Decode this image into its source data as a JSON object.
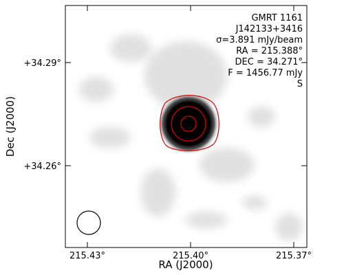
{
  "chart_data": {
    "type": "image",
    "annotations": [
      "GMRT 1161",
      "J142133+3416",
      "σ=3.891 mJy/beam",
      "RA = 215.388°",
      "DEC = 34.271°",
      "F = 1456.77 mJy",
      "S"
    ],
    "xlabel": "RA (J2000)",
    "ylabel": "Dec (J2000)",
    "xlim": [
      215.4364,
      215.3662
    ],
    "ylim": [
      34.2362,
      34.3066
    ],
    "xticks": [
      {
        "value": 215.43,
        "label": "215.43°"
      },
      {
        "value": 215.4,
        "label": "215.40°"
      },
      {
        "value": 215.37,
        "label": "215.37°"
      }
    ],
    "yticks": [
      {
        "value": 34.26,
        "label": "+34.26°"
      },
      {
        "value": 34.29,
        "label": "+34.29°"
      }
    ]
  }
}
